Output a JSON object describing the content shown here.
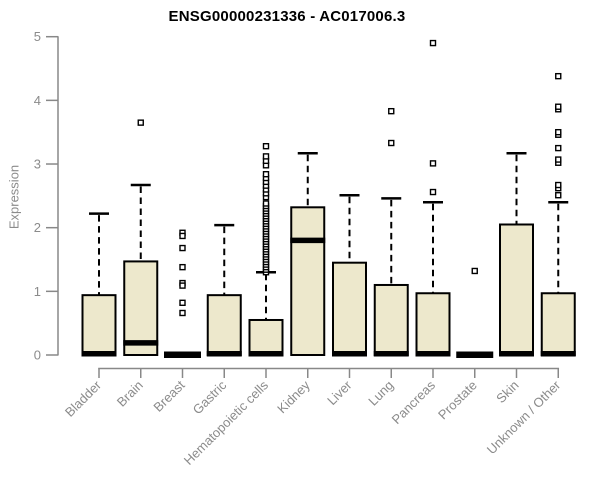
{
  "chart_data": {
    "type": "boxplot",
    "title": "ENSG00000231336 - AC017006.3",
    "xlabel": "",
    "ylabel": "Expression",
    "ylim": [
      0,
      5
    ],
    "yticks": [
      0,
      1,
      2,
      3,
      4,
      5
    ],
    "grid": false,
    "legend": "none",
    "outlier_marker": "open-square",
    "colors": {
      "box_fill": "#ede8cc",
      "box_border": "#000000",
      "median": "#000000",
      "whisker": "#000000",
      "outlier": "#000000",
      "axis": "#888888",
      "tick_label": "#8b8b8b",
      "title": "#000000",
      "background": "#ffffff"
    },
    "categories": [
      "Bladder",
      "Brain",
      "Breast",
      "Gastric",
      "Hematopoietic cells",
      "Kidney",
      "Liver",
      "Lung",
      "Pancreas",
      "Prostate",
      "Skin",
      "Unknown / Other"
    ],
    "boxes": [
      {
        "category": "Bladder",
        "whisker_low": 0,
        "q1": 0,
        "median": 0.02,
        "q3": 0.94,
        "whisker_high": 2.22,
        "outliers": []
      },
      {
        "category": "Brain",
        "whisker_low": 0,
        "q1": 0,
        "median": 0.19,
        "q3": 1.47,
        "whisker_high": 2.67,
        "outliers": [
          3.65
        ]
      },
      {
        "category": "Breast",
        "whisker_low": 0,
        "q1": 0,
        "median": 0.02,
        "q3": 0,
        "whisker_high": 0,
        "outliers": [
          1.92,
          1.87,
          1.68,
          1.38,
          1.13,
          1.09,
          0.82,
          0.66
        ]
      },
      {
        "category": "Gastric",
        "whisker_low": 0,
        "q1": 0,
        "median": 0.02,
        "q3": 0.94,
        "whisker_high": 2.04,
        "outliers": []
      },
      {
        "category": "Hematopoietic cells",
        "whisker_low": 0,
        "q1": 0,
        "median": 0.02,
        "q3": 0.55,
        "whisker_high": 1.3,
        "outliers": [
          1.3,
          1.34,
          1.38,
          1.42,
          1.46,
          1.5,
          1.54,
          1.58,
          1.62,
          1.66,
          1.7,
          1.74,
          1.78,
          1.82,
          1.86,
          1.9,
          1.94,
          1.98,
          2.02,
          2.06,
          2.1,
          2.14,
          2.18,
          2.22,
          2.26,
          2.3,
          2.34,
          2.38,
          2.48,
          2.54,
          2.6,
          2.66,
          2.72,
          2.78,
          2.84,
          2.98,
          3.05,
          3.12,
          3.28
        ]
      },
      {
        "category": "Kidney",
        "whisker_low": 0,
        "q1": 0,
        "median": 1.8,
        "q3": 2.32,
        "whisker_high": 3.17,
        "outliers": []
      },
      {
        "category": "Liver",
        "whisker_low": 0,
        "q1": 0,
        "median": 0.02,
        "q3": 1.45,
        "whisker_high": 2.51,
        "outliers": []
      },
      {
        "category": "Lung",
        "whisker_low": 0,
        "q1": 0,
        "median": 0.02,
        "q3": 1.1,
        "whisker_high": 2.46,
        "outliers": [
          3.33,
          3.83
        ]
      },
      {
        "category": "Pancreas",
        "whisker_low": 0,
        "q1": 0,
        "median": 0.02,
        "q3": 0.97,
        "whisker_high": 2.4,
        "outliers": [
          2.56,
          3.01,
          4.9
        ]
      },
      {
        "category": "Prostate",
        "whisker_low": 0,
        "q1": 0,
        "median": 0.02,
        "q3": 0,
        "whisker_high": 0,
        "outliers": [
          1.32
        ]
      },
      {
        "category": "Skin",
        "whisker_low": 0,
        "q1": 0,
        "median": 0.02,
        "q3": 2.05,
        "whisker_high": 3.17,
        "outliers": []
      },
      {
        "category": "Unknown / Other",
        "whisker_low": 0,
        "q1": 0,
        "median": 0.02,
        "q3": 0.97,
        "whisker_high": 2.4,
        "outliers": [
          2.51,
          2.62,
          2.67,
          3.02,
          3.07,
          3.25,
          3.46,
          3.5,
          3.86,
          3.9,
          4.38
        ]
      }
    ]
  }
}
